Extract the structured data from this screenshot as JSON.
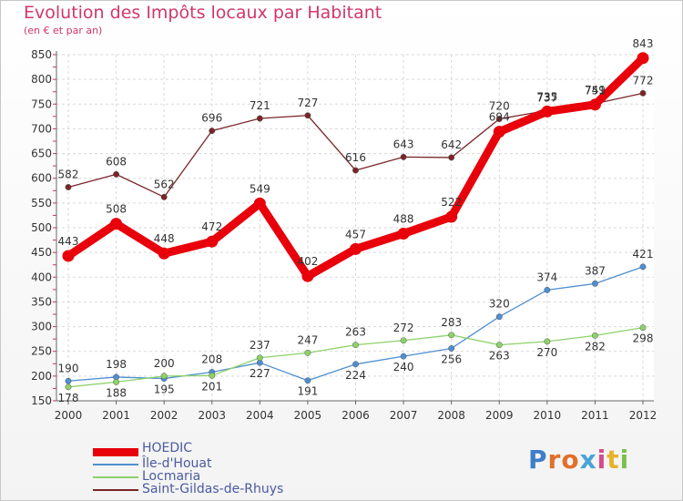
{
  "title": "Evolution des Impôts locaux par Habitant",
  "subtitle": "(en € et par an)",
  "logo_text": "Proxiti",
  "chart_data": {
    "type": "line",
    "title": "Evolution des Impôts locaux par Habitant",
    "subtitle": "(en € et par an)",
    "xlabel": "",
    "ylabel": "",
    "x": [
      "2000",
      "2001",
      "2002",
      "2003",
      "2004",
      "2005",
      "2006",
      "2007",
      "2008",
      "2009",
      "2010",
      "2011",
      "2012"
    ],
    "ylim": [
      150,
      850
    ],
    "yticks": [
      150,
      200,
      250,
      300,
      350,
      400,
      450,
      500,
      550,
      600,
      650,
      700,
      750,
      800,
      850
    ],
    "grid": true,
    "series": [
      {
        "name": "HOEDIC",
        "color": "#e8000b",
        "values": [
          443,
          508,
          448,
          472,
          549,
          402,
          457,
          488,
          522,
          694,
          735,
          749,
          843
        ]
      },
      {
        "name": "Île-d'Houat",
        "color": "#4f8fd0",
        "values": [
          190,
          198,
          195,
          208,
          227,
          191,
          224,
          240,
          256,
          320,
          374,
          387,
          421
        ]
      },
      {
        "name": "Locmaria",
        "color": "#8dd16a",
        "values": [
          178,
          188,
          200,
          201,
          237,
          247,
          263,
          272,
          283,
          263,
          270,
          282,
          298
        ]
      },
      {
        "name": "Saint-Gildas-de-Rhuys",
        "color": "#7a2528",
        "values": [
          582,
          608,
          562,
          696,
          721,
          727,
          616,
          643,
          642,
          720,
          737,
          751,
          772
        ]
      }
    ]
  }
}
